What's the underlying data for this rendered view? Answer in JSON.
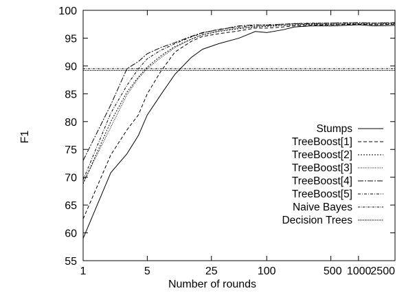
{
  "chart_data": {
    "type": "line",
    "title": "",
    "xlabel": "Number of rounds",
    "ylabel": "F1",
    "x_scale": "log",
    "xlim": [
      1,
      2500
    ],
    "ylim": [
      55,
      100
    ],
    "x_ticks": [
      1,
      5,
      25,
      100,
      500,
      1000,
      2500
    ],
    "x_tick_labels": [
      "1",
      "5",
      "25",
      "100",
      "500",
      "1000",
      "2500"
    ],
    "y_ticks": [
      55,
      60,
      65,
      70,
      75,
      80,
      85,
      90,
      95,
      100
    ],
    "grid": false,
    "legend_position": "bottom-right",
    "series": [
      {
        "name": "Stumps",
        "dash": "",
        "x": [
          1,
          2,
          3,
          4,
          5,
          7,
          10,
          15,
          20,
          30,
          50,
          75,
          100,
          150,
          200,
          300,
          500,
          1000,
          1500,
          2500
        ],
        "y": [
          59,
          70.8,
          74.2,
          77.5,
          81.2,
          84.8,
          88.5,
          91.5,
          93,
          94,
          95,
          96.2,
          96,
          96.5,
          97,
          97.2,
          97.2,
          97.4,
          97.2,
          97.3
        ]
      },
      {
        "name": "TreeBoost[1]",
        "dash": "5,3",
        "x": [
          1,
          2,
          3,
          4,
          5,
          7,
          10,
          15,
          20,
          30,
          50,
          75,
          100,
          150,
          200,
          300,
          500,
          1000,
          1500,
          2500
        ],
        "y": [
          62.5,
          74,
          78.5,
          81.2,
          85,
          89,
          92.5,
          94.4,
          95.3,
          95.8,
          96.3,
          96.8,
          96.8,
          97,
          97.2,
          97.3,
          97.4,
          97.5,
          97.4,
          97.5
        ]
      },
      {
        "name": "TreeBoost[2]",
        "dash": "2,2",
        "x": [
          1,
          2,
          3,
          4,
          5,
          7,
          10,
          15,
          20,
          30,
          50,
          75,
          100,
          150,
          200,
          300,
          500,
          1000,
          1500,
          2500
        ],
        "y": [
          68.8,
          80,
          85.3,
          88,
          89.8,
          91.8,
          93.5,
          94.8,
          95.6,
          96.2,
          96.7,
          97,
          97.1,
          97.3,
          97.4,
          97.5,
          97.5,
          97.6,
          97.5,
          97.6
        ]
      },
      {
        "name": "TreeBoost[3]",
        "dash": "1,1.5",
        "x": [
          1,
          2,
          3,
          4,
          5,
          7,
          10,
          15,
          20,
          30,
          50,
          75,
          100,
          150,
          200,
          300,
          500,
          1000,
          1500,
          2500
        ],
        "y": [
          69,
          79,
          84.8,
          87.8,
          89.5,
          91.5,
          93.3,
          94.8,
          95.6,
          96.3,
          96.8,
          97.1,
          97.2,
          97.3,
          97.4,
          97.5,
          97.5,
          97.6,
          97.5,
          97.6
        ]
      },
      {
        "name": "TreeBoost[4]",
        "dash": "8,2,2,2",
        "x": [
          1,
          2,
          3,
          4,
          5,
          7,
          10,
          15,
          20,
          30,
          50,
          75,
          100,
          150,
          200,
          300,
          500,
          1000,
          1500,
          2500
        ],
        "y": [
          73,
          83,
          89.5,
          90.8,
          92.2,
          93.3,
          94.2,
          95.3,
          96,
          96.5,
          97.2,
          97.4,
          97.3,
          97.5,
          97.6,
          97.6,
          97.7,
          97.8,
          97.7,
          97.8
        ]
      },
      {
        "name": "TreeBoost[5]",
        "dash": "4,2,1,2",
        "x": [
          1,
          2,
          3,
          4,
          5,
          7,
          10,
          15,
          20,
          30,
          50,
          75,
          100,
          150,
          200,
          300,
          500,
          1000,
          1500,
          2500
        ],
        "y": [
          69.5,
          81.5,
          86.5,
          89.5,
          91.3,
          92.8,
          94,
          95.2,
          95.9,
          96.6,
          97,
          97.3,
          97.4,
          97.5,
          97.6,
          97.7,
          97.7,
          97.8,
          97.7,
          97.8
        ]
      },
      {
        "name": "Naive Bayes",
        "dash": "3,1.5,1,1.5",
        "x": [
          1,
          2500
        ],
        "y": [
          89.5,
          89.5
        ]
      },
      {
        "name": "Decision Trees",
        "dash": "1.5,1",
        "x": [
          1,
          2500
        ],
        "y": [
          89.2,
          89.2
        ]
      }
    ]
  }
}
